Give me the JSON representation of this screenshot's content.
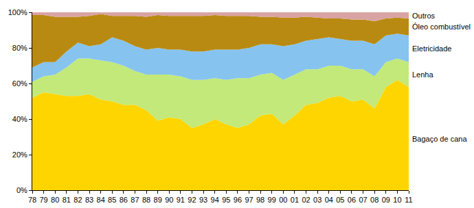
{
  "chart_data": {
    "type": "area",
    "stacked": true,
    "grid": false,
    "categories": [
      "78",
      "79",
      "80",
      "81",
      "82",
      "83",
      "84",
      "85",
      "86",
      "87",
      "88",
      "89",
      "90",
      "91",
      "92",
      "93",
      "94",
      "95",
      "96",
      "97",
      "98",
      "99",
      "00",
      "01",
      "02",
      "03",
      "04",
      "05",
      "06",
      "07",
      "08",
      "09",
      "10",
      "11"
    ],
    "ylim": [
      0,
      100
    ],
    "yticks": [
      {
        "value": 0,
        "label": "0%"
      },
      {
        "value": 20,
        "label": "20%"
      },
      {
        "value": 40,
        "label": "40%"
      },
      {
        "value": 60,
        "label": "60%"
      },
      {
        "value": 80,
        "label": "80%"
      },
      {
        "value": 100,
        "label": "100%"
      }
    ],
    "series": [
      {
        "name": "Bagaço de cana",
        "color": "#FFD500",
        "values": [
          52,
          55,
          54,
          53,
          53,
          54,
          51,
          50,
          48,
          48,
          45,
          39,
          41,
          40,
          35,
          37,
          40,
          37,
          35,
          37,
          42,
          43,
          37,
          42,
          48,
          49,
          52,
          53,
          50,
          51,
          46,
          58,
          62,
          58
        ]
      },
      {
        "name": "Lenha",
        "color": "#C2E97A",
        "values": [
          9,
          9,
          11,
          16,
          21,
          20,
          22,
          22,
          22,
          19,
          20,
          26,
          24,
          24,
          27,
          25,
          23,
          25,
          28,
          26,
          23,
          23,
          25,
          23,
          20,
          19,
          18,
          17,
          18,
          17,
          18,
          14,
          12,
          14
        ]
      },
      {
        "name": "Eletricidade",
        "color": "#86C3EE",
        "values": [
          8,
          8,
          7,
          9,
          9,
          7,
          9,
          14,
          14,
          14,
          14,
          15,
          14,
          15,
          16,
          16,
          16,
          17,
          16,
          17,
          17,
          16,
          19,
          17,
          16,
          17,
          16,
          15,
          16,
          16,
          18,
          15,
          14,
          15
        ]
      },
      {
        "name": "Óleo combustível",
        "color": "#B98A12",
        "values": [
          29.5,
          26.5,
          25.5,
          19.5,
          14.5,
          17,
          17,
          12,
          14,
          17,
          18.5,
          18.5,
          19,
          19,
          20,
          20,
          19.5,
          19,
          19,
          18,
          15.5,
          15.5,
          16,
          15,
          13.5,
          12,
          10.5,
          11.5,
          12,
          12,
          13,
          9.5,
          9,
          9.5
        ]
      },
      {
        "name": "Outros",
        "color": "#D9A3A3",
        "values": [
          1.5,
          1.5,
          2.5,
          2.5,
          2.5,
          2,
          1,
          2,
          2,
          2,
          2.5,
          1.5,
          2,
          2,
          2,
          2,
          1.5,
          2,
          2,
          2,
          2.5,
          2.5,
          3,
          3,
          2.5,
          3,
          3.5,
          3.5,
          4,
          4,
          5,
          3.5,
          3,
          3.5
        ]
      }
    ]
  }
}
